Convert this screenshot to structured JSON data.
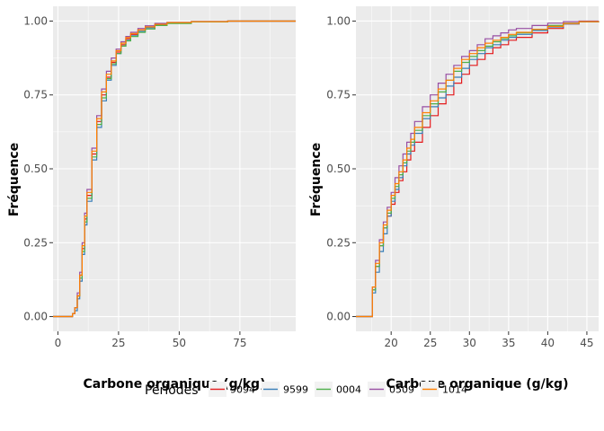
{
  "colors": {
    "panel_bg": "#EBEBEB",
    "grid_major": "#FFFFFF",
    "tick": "#333333"
  },
  "legend": {
    "title": "Périodes",
    "position": "bottom",
    "entries": [
      {
        "name": "9094",
        "color": "#E41A1C"
      },
      {
        "name": "9599",
        "color": "#377EB8"
      },
      {
        "name": "0004",
        "color": "#4DAF4A"
      },
      {
        "name": "0509",
        "color": "#984EA3"
      },
      {
        "name": "1014",
        "color": "#FF7F00"
      }
    ]
  },
  "chart_data": [
    {
      "type": "line",
      "subtype": "ecdf",
      "xlabel": "Carbone organique (g/kg)",
      "ylabel": "Fréquence",
      "xlim": [
        -2,
        98
      ],
      "ylim": [
        -0.05,
        1.05
      ],
      "xticks": [
        0,
        25,
        50,
        75
      ],
      "xtick_labels": [
        "0",
        "25",
        "50",
        "75"
      ],
      "yticks": [
        0,
        0.25,
        0.5,
        0.75,
        1.0
      ],
      "ytick_labels": [
        "0.00",
        "0.25",
        "0.50",
        "0.75",
        "1.00"
      ],
      "grid": true,
      "series": [
        {
          "name": "9094",
          "x": [
            -2,
            5,
            6,
            7,
            8,
            9,
            10,
            11,
            12,
            14,
            16,
            18,
            20,
            22,
            24,
            26,
            28,
            30,
            33,
            36,
            40,
            45,
            55,
            70,
            98
          ],
          "y": [
            0,
            0,
            0.01,
            0.03,
            0.07,
            0.14,
            0.23,
            0.33,
            0.41,
            0.55,
            0.66,
            0.75,
            0.81,
            0.86,
            0.895,
            0.92,
            0.94,
            0.955,
            0.97,
            0.98,
            0.99,
            0.995,
            0.998,
            1.0,
            1.0
          ]
        },
        {
          "name": "9599",
          "x": [
            -2,
            5,
            6,
            7,
            8,
            9,
            10,
            11,
            12,
            14,
            16,
            18,
            20,
            22,
            24,
            26,
            28,
            30,
            33,
            36,
            40,
            45,
            55,
            70,
            98
          ],
          "y": [
            0,
            0,
            0.01,
            0.02,
            0.06,
            0.12,
            0.21,
            0.31,
            0.39,
            0.53,
            0.64,
            0.73,
            0.8,
            0.85,
            0.89,
            0.915,
            0.935,
            0.95,
            0.965,
            0.977,
            0.988,
            0.994,
            0.998,
            1.0,
            1.0
          ]
        },
        {
          "name": "0004",
          "x": [
            -2,
            5,
            6,
            7,
            8,
            9,
            10,
            11,
            12,
            14,
            16,
            18,
            20,
            22,
            24,
            26,
            28,
            30,
            33,
            36,
            40,
            45,
            55,
            70,
            98
          ],
          "y": [
            0,
            0,
            0.01,
            0.03,
            0.07,
            0.13,
            0.22,
            0.32,
            0.4,
            0.54,
            0.65,
            0.74,
            0.805,
            0.855,
            0.89,
            0.915,
            0.933,
            0.948,
            0.962,
            0.973,
            0.985,
            0.992,
            0.997,
            1.0,
            1.0
          ]
        },
        {
          "name": "0509",
          "x": [
            -2,
            5,
            6,
            7,
            8,
            9,
            10,
            11,
            12,
            14,
            16,
            18,
            20,
            22,
            24,
            26,
            28,
            30,
            33,
            36,
            40,
            45,
            55,
            70,
            98
          ],
          "y": [
            0,
            0,
            0.01,
            0.03,
            0.08,
            0.15,
            0.25,
            0.35,
            0.43,
            0.57,
            0.68,
            0.77,
            0.83,
            0.875,
            0.905,
            0.93,
            0.948,
            0.962,
            0.975,
            0.984,
            0.992,
            0.996,
            0.999,
            1.0,
            1.0
          ]
        },
        {
          "name": "1014",
          "x": [
            -2,
            5,
            6,
            7,
            8,
            9,
            10,
            11,
            12,
            14,
            16,
            18,
            20,
            22,
            24,
            26,
            28,
            30,
            33,
            36,
            40,
            45,
            55,
            70,
            98
          ],
          "y": [
            0,
            0,
            0.01,
            0.03,
            0.07,
            0.14,
            0.24,
            0.34,
            0.42,
            0.56,
            0.67,
            0.76,
            0.82,
            0.865,
            0.9,
            0.925,
            0.944,
            0.958,
            0.97,
            0.98,
            0.989,
            0.995,
            0.998,
            1.0,
            1.0
          ]
        }
      ]
    },
    {
      "type": "line",
      "subtype": "ecdf",
      "xlabel": "Carbone organique (g/kg)",
      "ylabel": "Fréquence",
      "xlim": [
        15.5,
        46.5
      ],
      "ylim": [
        -0.05,
        1.05
      ],
      "xticks": [
        20,
        25,
        30,
        35,
        40,
        45
      ],
      "xtick_labels": [
        "20",
        "25",
        "30",
        "35",
        "40",
        "45"
      ],
      "yticks": [
        0,
        0.25,
        0.5,
        0.75,
        1.0
      ],
      "ytick_labels": [
        "0.00",
        "0.25",
        "0.50",
        "0.75",
        "1.00"
      ],
      "grid": true,
      "series": [
        {
          "name": "9094",
          "x": [
            15.5,
            17.2,
            17.6,
            18,
            18.5,
            19,
            19.5,
            20,
            20.5,
            21,
            21.5,
            22,
            22.5,
            23,
            24,
            25,
            26,
            27,
            28,
            29,
            30,
            31,
            32,
            33,
            34,
            35,
            36,
            38,
            40,
            42,
            44,
            46.5
          ],
          "y": [
            0,
            0,
            0.09,
            0.17,
            0.24,
            0.3,
            0.34,
            0.38,
            0.42,
            0.46,
            0.49,
            0.53,
            0.56,
            0.59,
            0.64,
            0.68,
            0.72,
            0.75,
            0.79,
            0.82,
            0.85,
            0.87,
            0.89,
            0.91,
            0.92,
            0.935,
            0.945,
            0.96,
            0.975,
            0.99,
            0.998,
            1.0
          ]
        },
        {
          "name": "9599",
          "x": [
            15.5,
            17.2,
            17.6,
            18,
            18.5,
            19,
            19.5,
            20,
            20.5,
            21,
            21.5,
            22,
            22.5,
            23,
            24,
            25,
            26,
            27,
            28,
            29,
            30,
            31,
            32,
            33,
            34,
            35,
            36,
            38,
            40,
            42,
            44,
            46.5
          ],
          "y": [
            0,
            0,
            0.08,
            0.15,
            0.22,
            0.28,
            0.34,
            0.39,
            0.43,
            0.47,
            0.51,
            0.55,
            0.58,
            0.62,
            0.67,
            0.71,
            0.74,
            0.78,
            0.81,
            0.84,
            0.87,
            0.89,
            0.91,
            0.92,
            0.935,
            0.945,
            0.955,
            0.968,
            0.98,
            0.99,
            0.998,
            1.0
          ]
        },
        {
          "name": "0004",
          "x": [
            15.5,
            17.2,
            17.6,
            18,
            18.5,
            19,
            19.5,
            20,
            20.5,
            21,
            21.5,
            22,
            22.5,
            23,
            24,
            25,
            26,
            27,
            28,
            29,
            30,
            31,
            32,
            33,
            34,
            35,
            36,
            38,
            40,
            42,
            44,
            46.5
          ],
          "y": [
            0,
            0,
            0.09,
            0.17,
            0.24,
            0.3,
            0.35,
            0.4,
            0.44,
            0.48,
            0.52,
            0.56,
            0.59,
            0.63,
            0.68,
            0.72,
            0.76,
            0.8,
            0.83,
            0.86,
            0.88,
            0.9,
            0.915,
            0.93,
            0.94,
            0.95,
            0.96,
            0.972,
            0.985,
            0.993,
            0.998,
            1.0
          ]
        },
        {
          "name": "0509",
          "x": [
            15.5,
            17.2,
            17.6,
            18,
            18.5,
            19,
            19.5,
            20,
            20.5,
            21,
            21.5,
            22,
            22.5,
            23,
            24,
            25,
            26,
            27,
            28,
            29,
            30,
            31,
            32,
            33,
            34,
            35,
            36,
            38,
            40,
            42,
            44,
            46.5
          ],
          "y": [
            0,
            0,
            0.1,
            0.19,
            0.26,
            0.32,
            0.37,
            0.42,
            0.47,
            0.51,
            0.55,
            0.59,
            0.62,
            0.66,
            0.71,
            0.75,
            0.79,
            0.82,
            0.85,
            0.88,
            0.9,
            0.92,
            0.94,
            0.95,
            0.96,
            0.97,
            0.975,
            0.985,
            0.993,
            0.998,
            1.0,
            1.0
          ]
        },
        {
          "name": "1014",
          "x": [
            15.5,
            17.2,
            17.6,
            18,
            18.5,
            19,
            19.5,
            20,
            20.5,
            21,
            21.5,
            22,
            22.5,
            23,
            24,
            25,
            26,
            27,
            28,
            29,
            30,
            31,
            32,
            33,
            34,
            35,
            36,
            38,
            40,
            42,
            44,
            46.5
          ],
          "y": [
            0,
            0,
            0.1,
            0.18,
            0.25,
            0.31,
            0.36,
            0.41,
            0.45,
            0.49,
            0.53,
            0.57,
            0.6,
            0.64,
            0.69,
            0.73,
            0.77,
            0.8,
            0.84,
            0.87,
            0.89,
            0.91,
            0.925,
            0.935,
            0.945,
            0.955,
            0.962,
            0.972,
            0.982,
            0.992,
            0.998,
            1.0
          ]
        }
      ]
    }
  ]
}
